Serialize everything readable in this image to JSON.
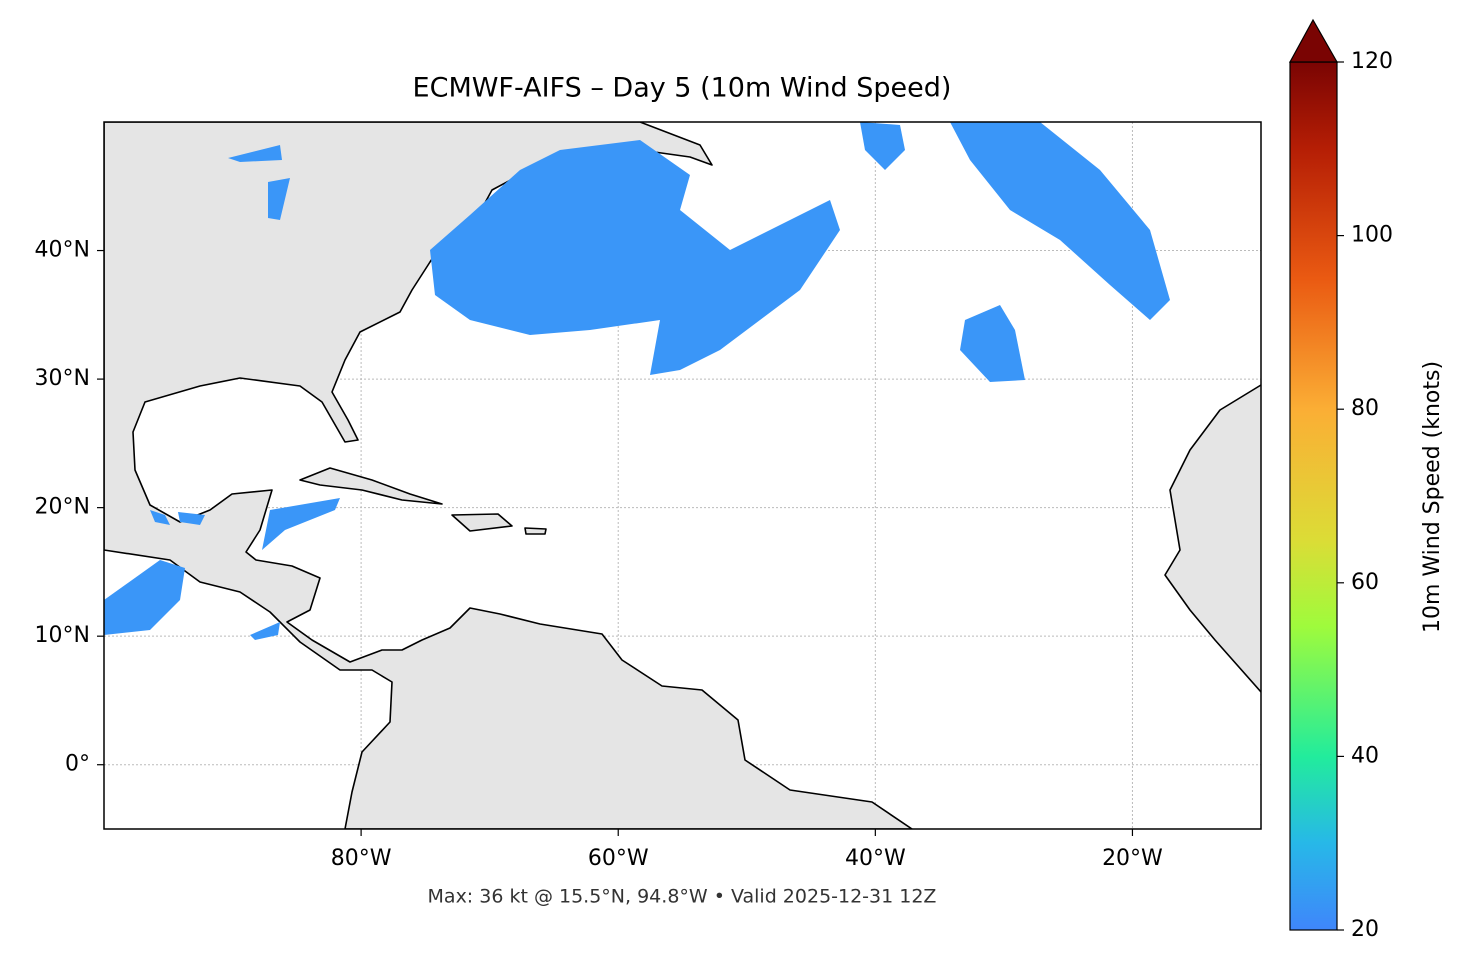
{
  "chart_data": {
    "type": "map",
    "title": "ECMWF-AIFS – Day 5 (10m Wind Speed)",
    "xlim": [
      -100,
      -10
    ],
    "ylim": [
      -5,
      50
    ],
    "xticks": [
      {
        "value": -80,
        "label": "80°W"
      },
      {
        "value": -60,
        "label": "60°W"
      },
      {
        "value": -40,
        "label": "40°W"
      },
      {
        "value": -20,
        "label": "20°W"
      }
    ],
    "yticks": [
      {
        "value": 0,
        "label": "0°"
      },
      {
        "value": 10,
        "label": "10°N"
      },
      {
        "value": 20,
        "label": "20°N"
      },
      {
        "value": 30,
        "label": "30°N"
      },
      {
        "value": 40,
        "label": "40°N"
      }
    ],
    "grid": true,
    "colorbar": {
      "label": "10m Wind Speed (knots)",
      "lim": [
        20,
        120
      ],
      "ticks": [
        20,
        40,
        60,
        80,
        100,
        120
      ]
    },
    "footnote": "Max: 36 kt @ 15.5°N, 94.8°W • Valid 2025-12-31 12Z"
  }
}
